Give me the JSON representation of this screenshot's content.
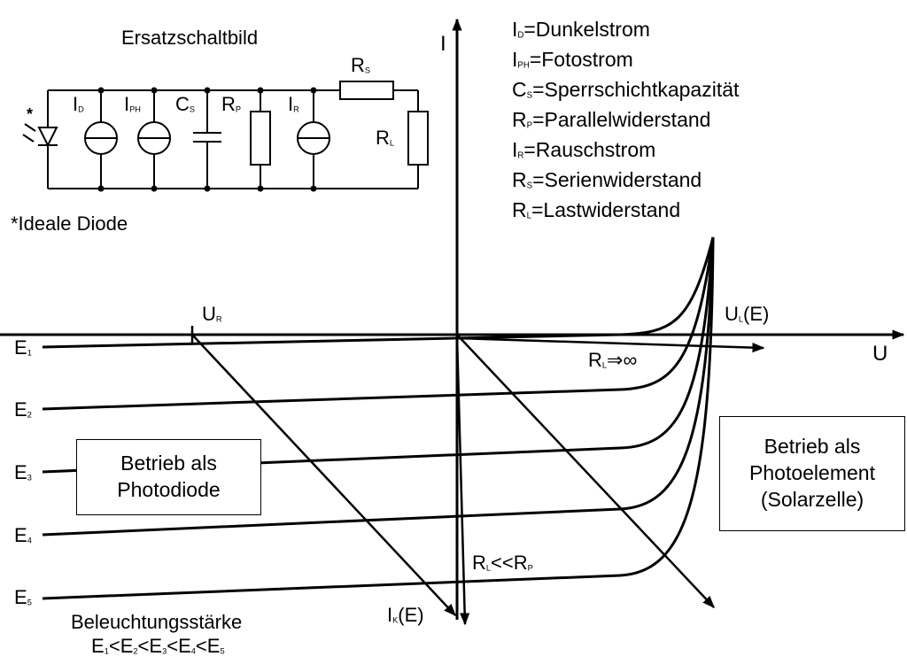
{
  "circuit": {
    "title": "Ersatzschaltbild",
    "diode_star": "*",
    "note": "*Ideale Diode",
    "labels": {
      "id": {
        "main": "I",
        "sub": "D"
      },
      "iph": {
        "main": "I",
        "sub": "PH"
      },
      "cs": {
        "main": "C",
        "sub": "S"
      },
      "rp": {
        "main": "R",
        "sub": "P"
      },
      "ir": {
        "main": "I",
        "sub": "R"
      },
      "rs": {
        "main": "R",
        "sub": "S"
      },
      "rl": {
        "main": "R",
        "sub": "L"
      }
    }
  },
  "legend": [
    {
      "main": "I",
      "sub": "D",
      "text": "=Dunkelstrom"
    },
    {
      "main": "I",
      "sub": "PH",
      "text": "=Fotostrom"
    },
    {
      "main": "C",
      "sub": "S",
      "text": "=Sperrschichtkapazität"
    },
    {
      "main": "R",
      "sub": "P",
      "text": "=Parallelwiderstand"
    },
    {
      "main": "I",
      "sub": "R",
      "text": "=Rauschstrom"
    },
    {
      "main": "R",
      "sub": "S",
      "text": "=Serienwiderstand"
    },
    {
      "main": "R",
      "sub": "L",
      "text": "=Lastwiderstand"
    }
  ],
  "axes": {
    "x_label": "U",
    "y_label": "I"
  },
  "graph_labels": {
    "ur": {
      "main": "U",
      "sub": "R"
    },
    "ul": {
      "main": "U",
      "sub": "L",
      "suffix": "(E)"
    },
    "ik": {
      "main": "I",
      "sub": "K",
      "suffix": "(E)"
    },
    "rl_inf": {
      "main": "R",
      "sub": "L",
      "suffix": "⇒∞"
    },
    "rl_small": {
      "main": "R",
      "sub": "L",
      "mid": "<<R",
      "sub2": "P"
    }
  },
  "curves": [
    {
      "main": "E",
      "sub": "1"
    },
    {
      "main": "E",
      "sub": "2"
    },
    {
      "main": "E",
      "sub": "3"
    },
    {
      "main": "E",
      "sub": "4"
    },
    {
      "main": "E",
      "sub": "5"
    }
  ],
  "boxes": {
    "photodiode": {
      "line1": "Betrieb als",
      "line2": "Photodiode"
    },
    "photoelement": {
      "line1": "Betrieb als",
      "line2": "Photoelement",
      "line3": "(Solarzelle)"
    }
  },
  "footer": {
    "title": "Beleuchtungsstärke",
    "order": [
      {
        "main": "E",
        "sub": "1",
        "sep": "<"
      },
      {
        "main": "E",
        "sub": "2",
        "sep": "<"
      },
      {
        "main": "E",
        "sub": "3",
        "sep": "<"
      },
      {
        "main": "E",
        "sub": "4",
        "sep": "<"
      },
      {
        "main": "E",
        "sub": "5",
        "sep": ""
      }
    ]
  }
}
